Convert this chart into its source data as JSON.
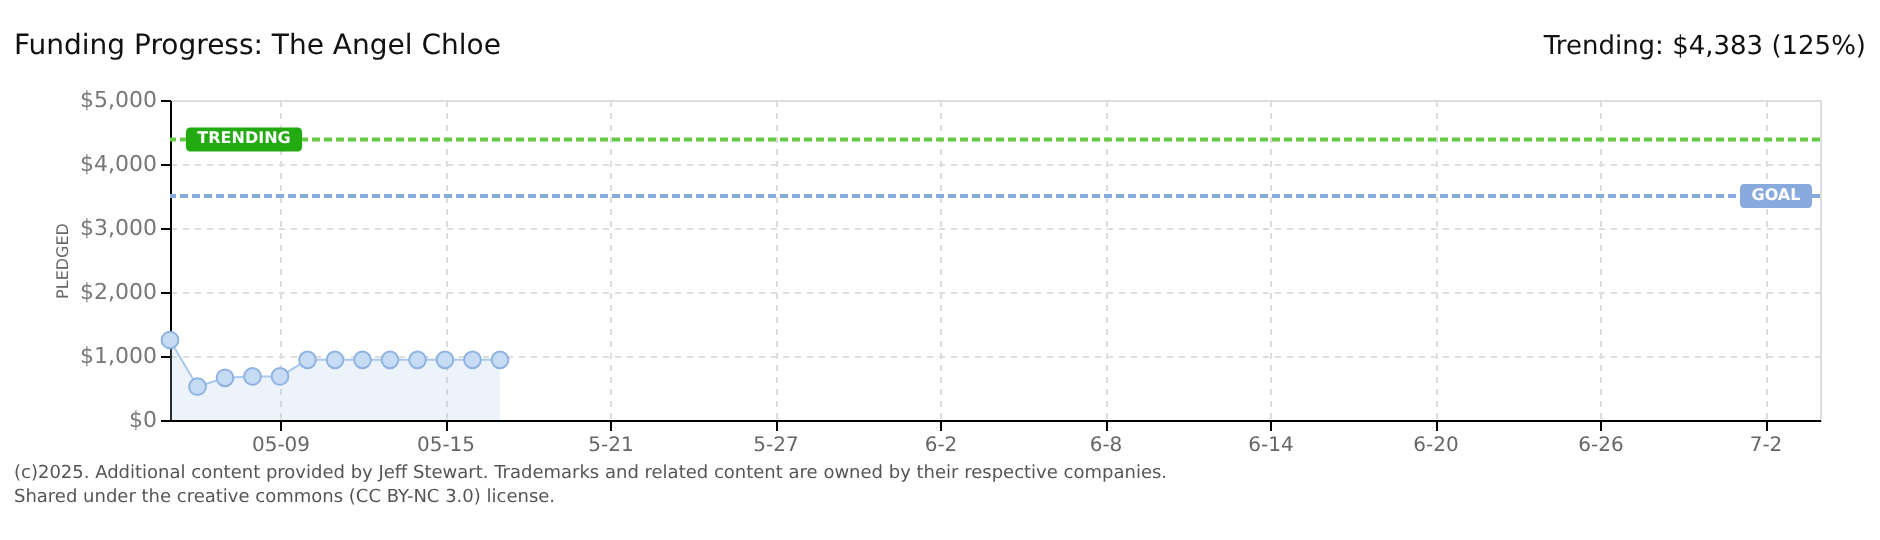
{
  "chart_data": {
    "type": "area",
    "title": "Funding Progress: The Angel Chloe",
    "ylabel": "PLEDGED",
    "x": [
      "2025-05-05",
      "2025-05-06",
      "2025-05-07",
      "2025-05-08",
      "2025-05-09",
      "2025-05-10",
      "2025-05-11",
      "2025-05-12",
      "2025-05-13",
      "2025-05-14",
      "2025-05-15",
      "2025-05-16",
      "2025-05-17"
    ],
    "series": [
      {
        "color": "#a9c9ef",
        "values": [
          1250,
          520,
          660,
          680,
          680,
          940,
          940,
          940,
          940,
          940,
          940,
          940,
          940
        ]
      }
    ],
    "xlim": [
      "2025-05-05",
      "2025-07-04"
    ],
    "xticks": [
      {
        "value": "2025-05-09",
        "label": "05-09"
      },
      {
        "value": "2025-05-15",
        "label": "05-15"
      },
      {
        "value": "2025-05-21",
        "label": "5-21"
      },
      {
        "value": "2025-05-27",
        "label": "5-27"
      },
      {
        "value": "2025-06-02",
        "label": "6-2"
      },
      {
        "value": "2025-06-08",
        "label": "6-8"
      },
      {
        "value": "2025-06-14",
        "label": "6-14"
      },
      {
        "value": "2025-06-20",
        "label": "6-20"
      },
      {
        "value": "2025-06-26",
        "label": "6-26"
      },
      {
        "value": "2025-07-02",
        "label": "7-2"
      }
    ],
    "ylim": [
      0,
      5000
    ],
    "yticks": [
      {
        "value": 0,
        "label": "$0"
      },
      {
        "value": 1000,
        "label": "$1,000"
      },
      {
        "value": 2000,
        "label": "$2,000"
      },
      {
        "value": 3000,
        "label": "$3,000"
      },
      {
        "value": 4000,
        "label": "$4,000"
      },
      {
        "value": 5000,
        "label": "$5,000"
      }
    ],
    "ref_lines": [
      {
        "axis": "y",
        "value": 4383,
        "label": "TRENDING",
        "color": "#66cc44",
        "line_style": "dashed"
      },
      {
        "axis": "y",
        "value": 3500,
        "label": "GOAL",
        "color": "#88aadd",
        "line_style": "dashed"
      }
    ],
    "annotations": [
      "Trending: $4,383 (125%)",
      "(c)2025. Additional content provided by Jeff Stewart. Trademarks and related content are owned by their respective companies.",
      "Shared under the creative commons (CC BY-NC 3.0) license."
    ],
    "grid": true,
    "marker": "circle"
  }
}
